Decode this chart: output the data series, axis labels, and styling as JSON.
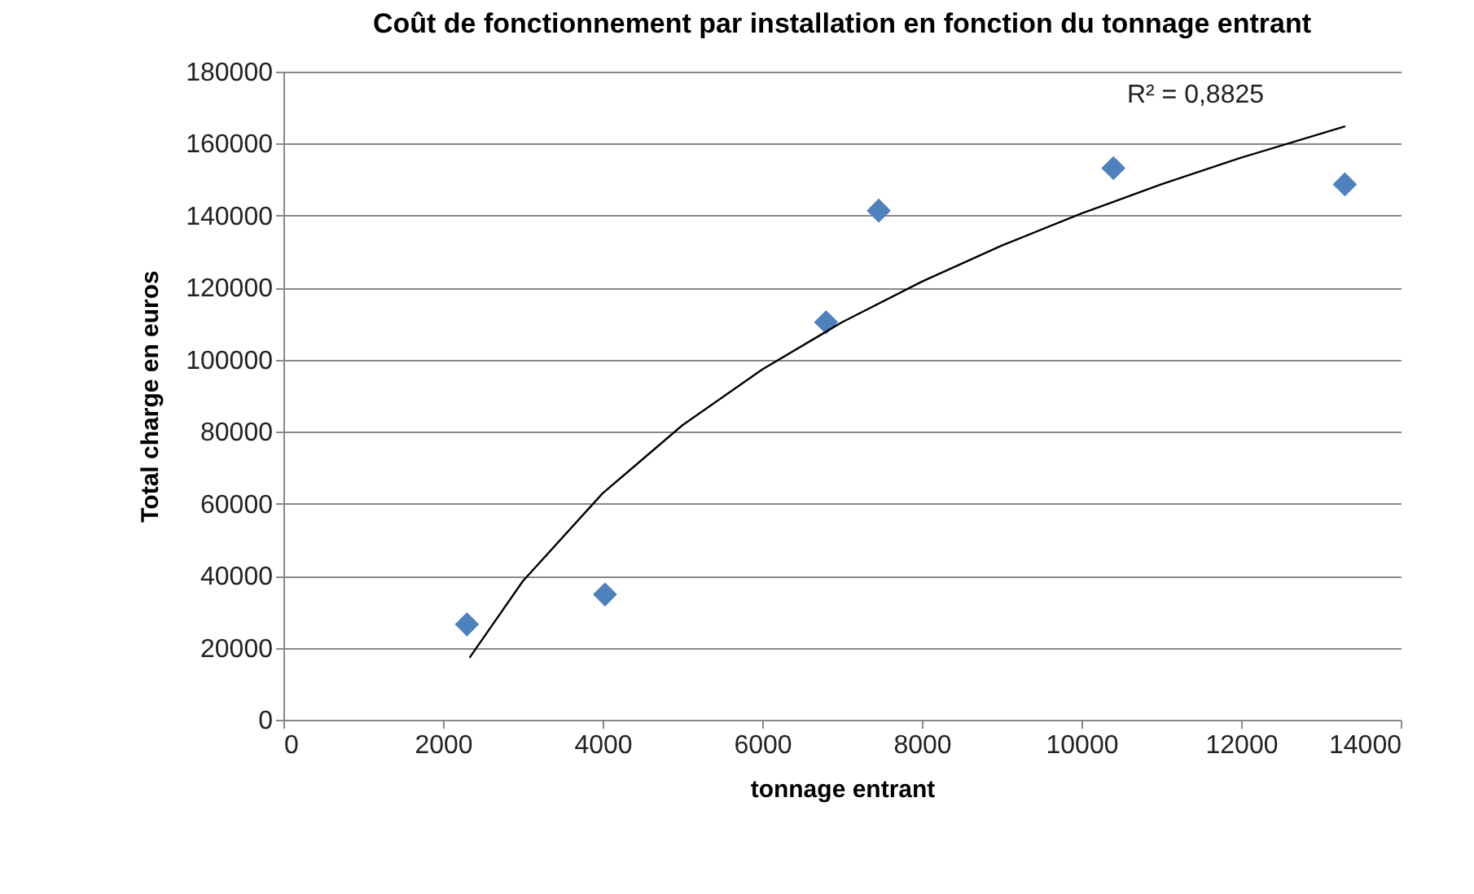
{
  "chart_data": {
    "type": "scatter",
    "title": "Coût de fonctionnement par installation en fonction du tonnage entrant",
    "xlabel": "tonnage entrant",
    "ylabel": "Total charge en euros",
    "xlim": [
      0,
      14000
    ],
    "xticks": [
      0,
      2000,
      4000,
      6000,
      8000,
      10000,
      12000,
      14000
    ],
    "ylim": [
      0,
      180000
    ],
    "yticks": [
      0,
      20000,
      40000,
      60000,
      80000,
      100000,
      120000,
      140000,
      160000,
      180000
    ],
    "grid": "y",
    "marker": "diamond",
    "series": [
      {
        "color": "#4f81bd",
        "x": [
          2300,
          4030,
          6800,
          7460,
          10400,
          13300
        ],
        "values": [
          26500,
          34800,
          110400,
          141400,
          153200,
          148700
        ]
      },
      {
        "type": "line",
        "color": "#000000",
        "marker": "none",
        "x": [
          2332,
          3000,
          4000,
          5000,
          6000,
          7000,
          8000,
          9000,
          10000,
          11000,
          12000,
          13305
        ],
        "values": [
          17200,
          38500,
          62900,
          81800,
          97300,
          110400,
          121700,
          131700,
          140600,
          148700,
          156100,
          164800
        ]
      }
    ],
    "annotations": [
      "R² = 0,8825"
    ]
  }
}
